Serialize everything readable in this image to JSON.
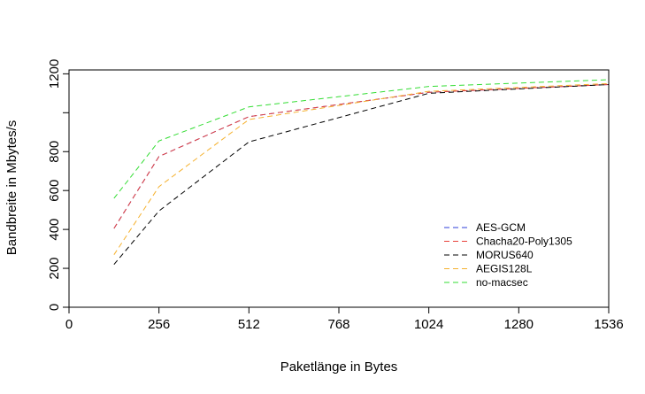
{
  "chart_data": {
    "type": "line",
    "title": "",
    "xlabel": "Paketlänge in Bytes",
    "ylabel": "Bandbreite in Mbytes/s",
    "xlim": [
      0,
      1536
    ],
    "ylim": [
      0,
      1220
    ],
    "xticks": [
      0,
      256,
      512,
      768,
      1024,
      1280,
      1536
    ],
    "yticks": [
      0,
      200,
      400,
      600,
      800,
      1200
    ],
    "grid": false,
    "legend_position": "bottom-right",
    "line_style": "dashed",
    "x": [
      128,
      256,
      512,
      1024,
      1536
    ],
    "series": [
      {
        "name": "AES-GCM",
        "color": "#2c3fd8",
        "values": [
          405,
          775,
          980,
          1105,
          1145
        ]
      },
      {
        "name": "Chacha20-Poly1305",
        "color": "#e8403a",
        "values": [
          405,
          775,
          980,
          1105,
          1145
        ]
      },
      {
        "name": "MORUS640",
        "color": "#000000",
        "values": [
          220,
          495,
          850,
          1100,
          1145
        ]
      },
      {
        "name": "AEGIS128L",
        "color": "#f5b12e",
        "values": [
          270,
          620,
          965,
          1110,
          1150
        ]
      },
      {
        "name": "no-macsec",
        "color": "#33dd33",
        "values": [
          560,
          855,
          1030,
          1135,
          1170
        ]
      }
    ]
  }
}
